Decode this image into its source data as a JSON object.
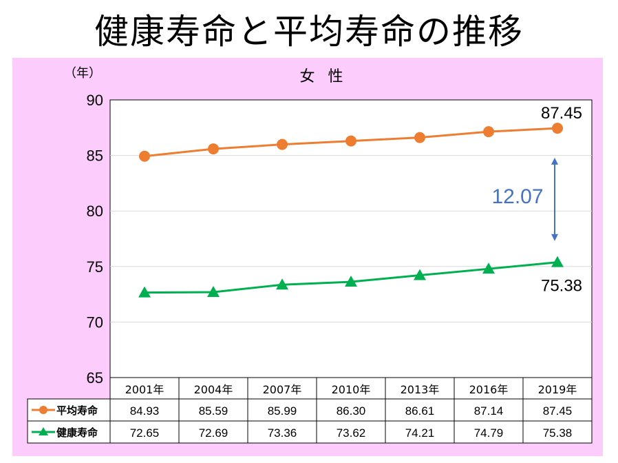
{
  "page_title": "健康寿命と平均寿命の推移",
  "colors": {
    "panel_bg": "#fcccfc",
    "series_avg": "#ed7d31",
    "series_healthy": "#00b050",
    "gap_arrow": "#4472c4"
  },
  "chart_data": {
    "type": "line",
    "title": "女 性",
    "ylabel": "（年）",
    "ylim": [
      65,
      90
    ],
    "yticks": [
      "90",
      "85",
      "80",
      "75",
      "70",
      "65"
    ],
    "categories": [
      "2001年",
      "2004年",
      "2007年",
      "2010年",
      "2013年",
      "2016年",
      "2019年"
    ],
    "series": [
      {
        "name": "平均寿命",
        "marker": "circle",
        "color": "#ed7d31",
        "values": [
          84.93,
          85.59,
          85.99,
          86.3,
          86.61,
          87.14,
          87.45
        ],
        "table": [
          "84.93",
          "85.59",
          "85.99",
          "86.30",
          "86.61",
          "87.14",
          "87.45"
        ]
      },
      {
        "name": "健康寿命",
        "marker": "triangle",
        "color": "#00b050",
        "values": [
          72.65,
          72.69,
          73.36,
          73.62,
          74.21,
          74.79,
          75.38
        ],
        "table": [
          "72.65",
          "72.69",
          "73.36",
          "73.62",
          "74.21",
          "74.79",
          "75.38"
        ]
      }
    ],
    "annotations": {
      "avg_last_label": "87.45",
      "healthy_last_label": "75.38",
      "gap_label": "12.07"
    },
    "grid": true,
    "legend": "data-table"
  }
}
